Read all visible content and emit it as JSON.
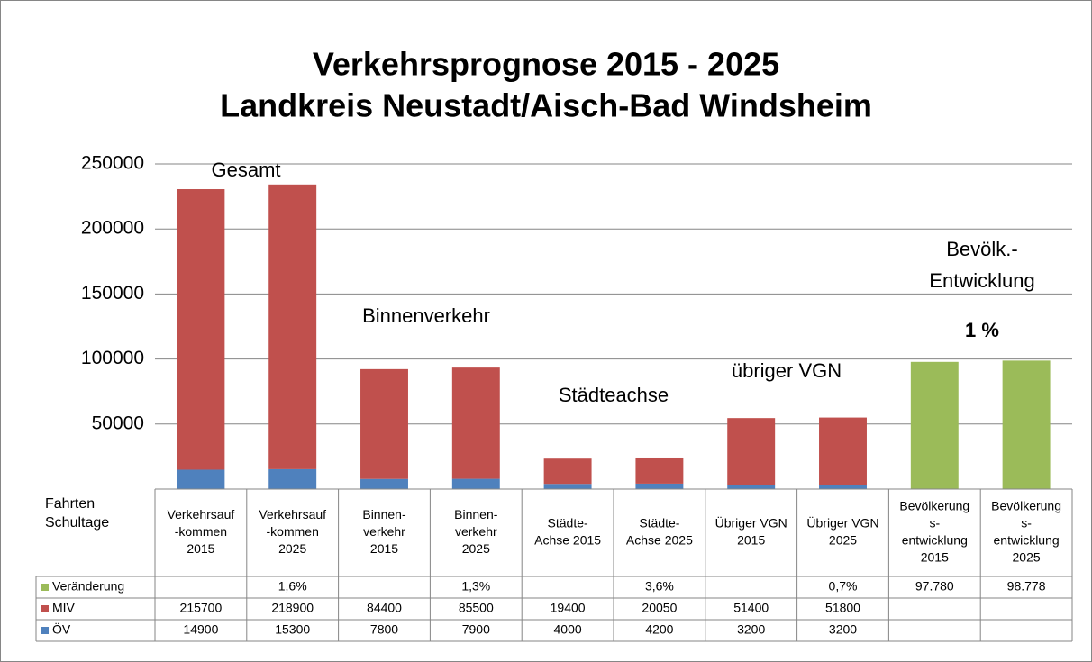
{
  "chart_data": {
    "type": "bar",
    "title": [
      "Verkehrsprognose 2015 - 2025",
      "Landkreis Neustadt/Aisch-Bad Windsheim"
    ],
    "table_header": [
      "Fahrten",
      "Schultage"
    ],
    "categories": [
      [
        "Verkehrsauf",
        "-kommen",
        "2015"
      ],
      [
        "Verkehrsauf",
        "-kommen",
        "2025"
      ],
      [
        "Binnen-",
        "verkehr",
        "2015"
      ],
      [
        "Binnen-",
        "verkehr",
        "2025"
      ],
      [
        "Städte-",
        "Achse 2015"
      ],
      [
        "Städte-",
        "Achse 2025"
      ],
      [
        "Übriger VGN",
        "2015"
      ],
      [
        "Übriger VGN",
        "2025"
      ],
      [
        "Bevölkerung",
        "s-",
        "entwicklung",
        "2015"
      ],
      [
        "Bevölkerung",
        "s-",
        "entwicklung",
        "2025"
      ]
    ],
    "series": [
      {
        "name": "ÖV",
        "color": "#4f81bd",
        "values": [
          14900,
          15300,
          7800,
          7900,
          4000,
          4200,
          3200,
          3200,
          null,
          null
        ]
      },
      {
        "name": "MIV",
        "color": "#c0504d",
        "values": [
          215700,
          218900,
          84400,
          85500,
          19400,
          20050,
          51400,
          51800,
          null,
          null
        ]
      },
      {
        "name": "Veränderung",
        "color": "#9bbb59",
        "values": [
          null,
          1.6,
          null,
          1.3,
          null,
          3.6,
          null,
          0.7,
          97780,
          98778
        ],
        "value_labels": [
          null,
          "1,6%",
          null,
          "1,3%",
          null,
          "3,6%",
          null,
          "0,7%",
          "97.780",
          "98.778"
        ]
      }
    ],
    "stacked": true,
    "ylim": [
      0,
      250000
    ],
    "yticks": [
      50000,
      100000,
      150000,
      200000,
      250000
    ],
    "grid": true,
    "annotations": [
      {
        "text": [
          "Gesamt"
        ]
      },
      {
        "text": [
          "Binnenverkehr"
        ]
      },
      {
        "text": [
          "Städteachse"
        ]
      },
      {
        "text": [
          "übriger VGN"
        ]
      },
      {
        "text": [
          "Bevölk.-",
          "Entwicklung"
        ]
      },
      {
        "text": [
          "1 %"
        ],
        "bold": true
      }
    ]
  }
}
